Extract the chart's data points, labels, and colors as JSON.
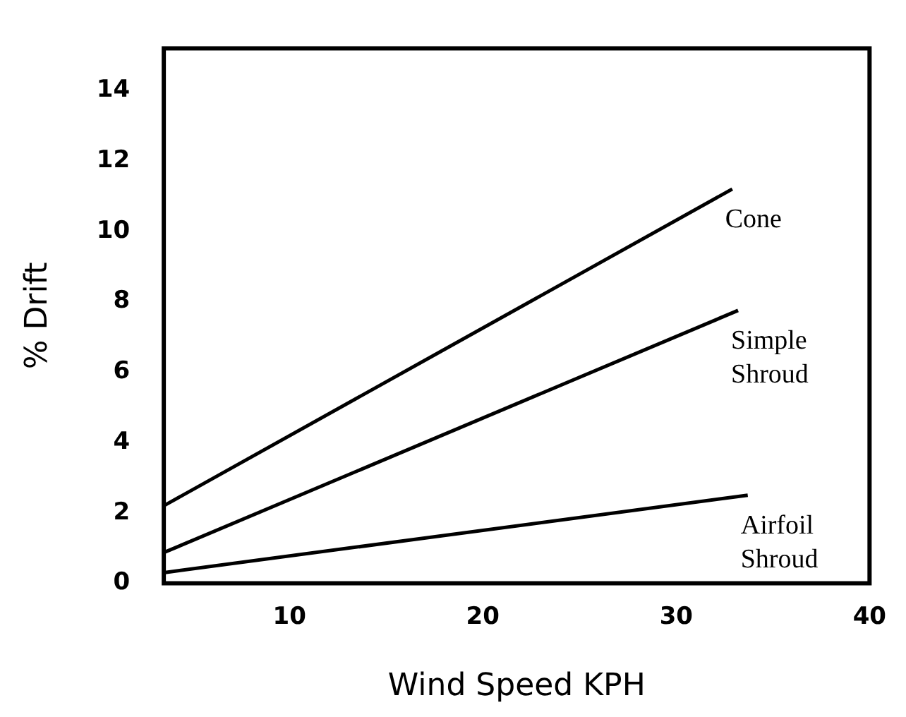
{
  "chart_data": {
    "type": "line",
    "xlabel": "Wind Speed KPH",
    "ylabel": "% Drift",
    "xlim": [
      3.5,
      40
    ],
    "xticks": [
      10,
      20,
      30,
      40
    ],
    "ylim": [
      0,
      15.2
    ],
    "yticks": [
      0,
      2,
      4,
      6,
      8,
      10,
      12,
      14
    ],
    "grid": false,
    "legend": false,
    "marker": "none",
    "line_style": "solid",
    "series": [
      {
        "name": "Cone",
        "color": "#000000",
        "x": [
          3.5,
          32.9
        ],
        "values": [
          2.2,
          11.2
        ]
      },
      {
        "name": "Simple Shroud",
        "color": "#000000",
        "x": [
          3.5,
          33.2
        ],
        "values": [
          0.87,
          7.75
        ]
      },
      {
        "name": "Airfoil Shroud",
        "color": "#000000",
        "x": [
          3.5,
          33.7
        ],
        "values": [
          0.3,
          2.5
        ]
      }
    ]
  }
}
